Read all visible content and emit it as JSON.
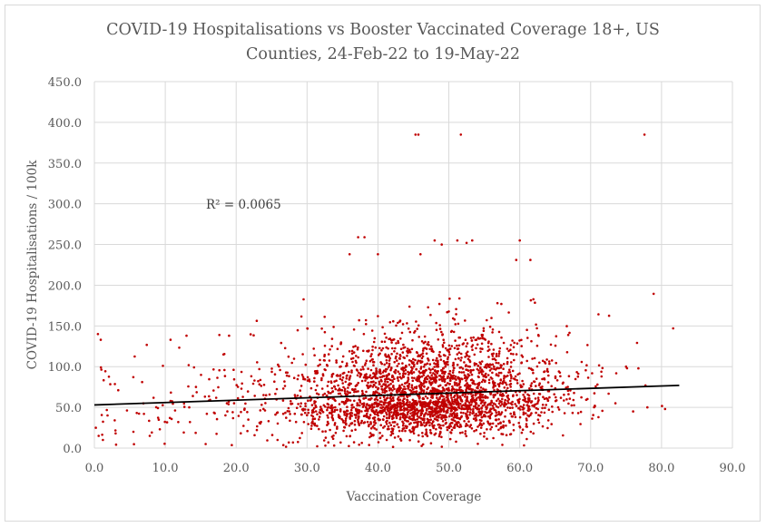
{
  "chart_data": {
    "type": "scatter",
    "title_line1": "COVID-19 Hospitalisations vs Booster Vaccinated Coverage 18+, US",
    "title_line2": "Counties, 24-Feb-22 to 19-May-22",
    "xlabel": "Vaccination Coverage",
    "ylabel": "COVID-19 Hospitalisations / 100k",
    "xlim": [
      0,
      90
    ],
    "ylim": [
      0,
      450
    ],
    "x_ticks": [
      "0.0",
      "10.0",
      "20.0",
      "30.0",
      "40.0",
      "50.0",
      "60.0",
      "70.0",
      "80.0",
      "90.0"
    ],
    "y_ticks": [
      "0.0",
      "50.0",
      "100.0",
      "150.0",
      "200.0",
      "250.0",
      "300.0",
      "350.0",
      "400.0",
      "450.0"
    ],
    "grid": true,
    "legend": "none",
    "marker_color": "#c00000",
    "trendline_color": "#000000",
    "trendline": {
      "type": "linear",
      "x": [
        0,
        82.5
      ],
      "y": [
        53,
        77
      ]
    },
    "annotation": "R² = 0.0065",
    "approx_point_count": 3000,
    "outliers": [
      {
        "x": 45.3,
        "y": 385
      },
      {
        "x": 45.7,
        "y": 385
      },
      {
        "x": 51.7,
        "y": 385
      },
      {
        "x": 77.6,
        "y": 385
      },
      {
        "x": 37.2,
        "y": 259
      },
      {
        "x": 38.1,
        "y": 259
      },
      {
        "x": 60.0,
        "y": 255
      },
      {
        "x": 48.0,
        "y": 255
      },
      {
        "x": 49.0,
        "y": 250
      },
      {
        "x": 51.2,
        "y": 255
      },
      {
        "x": 53.3,
        "y": 255
      },
      {
        "x": 52.5,
        "y": 252
      },
      {
        "x": 36.0,
        "y": 238
      },
      {
        "x": 40.0,
        "y": 238
      },
      {
        "x": 46.0,
        "y": 238
      },
      {
        "x": 59.5,
        "y": 231
      },
      {
        "x": 61.5,
        "y": 231
      },
      {
        "x": 0.5,
        "y": 140
      },
      {
        "x": 0.9,
        "y": 133
      },
      {
        "x": 13.0,
        "y": 138
      },
      {
        "x": 19.0,
        "y": 138
      },
      {
        "x": 0.2,
        "y": 25
      },
      {
        "x": 0.6,
        "y": 15
      },
      {
        "x": 1.2,
        "y": 10
      },
      {
        "x": 3.0,
        "y": 18
      },
      {
        "x": 5.5,
        "y": 20
      },
      {
        "x": 75.0,
        "y": 100
      },
      {
        "x": 73.5,
        "y": 55
      },
      {
        "x": 76.0,
        "y": 45
      },
      {
        "x": 78.0,
        "y": 50
      },
      {
        "x": 80.5,
        "y": 48
      }
    ]
  }
}
